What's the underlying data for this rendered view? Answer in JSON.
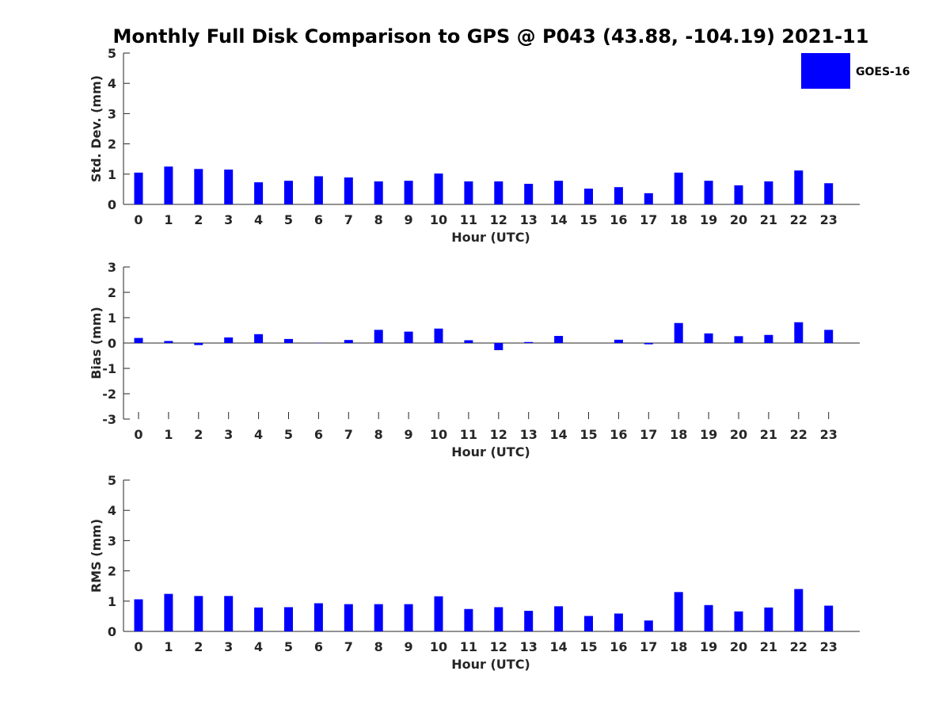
{
  "title": "Monthly Full Disk Comparison to GPS @ P043 (43.88, -104.19) 2021-11",
  "colors": {
    "bar": "#0000ff",
    "axis": "#262626",
    "background": "#ffffff"
  },
  "legend": {
    "label": "GOES-16",
    "color": "#0000ff",
    "placement": "top-right"
  },
  "chart_data": [
    {
      "type": "bar",
      "title": "",
      "xlabel": "Hour (UTC)",
      "ylabel": "Std. Dev. (mm)",
      "ylim": [
        0,
        5
      ],
      "yticks": [
        0,
        1,
        2,
        3,
        4,
        5
      ],
      "categories": [
        "0",
        "1",
        "2",
        "3",
        "4",
        "5",
        "6",
        "7",
        "8",
        "9",
        "10",
        "11",
        "12",
        "13",
        "14",
        "15",
        "16",
        "17",
        "18",
        "19",
        "20",
        "21",
        "22",
        "23"
      ],
      "series": [
        {
          "name": "GOES-16",
          "values": [
            1.05,
            1.25,
            1.17,
            1.15,
            0.73,
            0.78,
            0.93,
            0.89,
            0.76,
            0.78,
            1.02,
            0.76,
            0.76,
            0.68,
            0.78,
            0.52,
            0.57,
            0.37,
            1.05,
            0.78,
            0.63,
            0.76,
            1.12,
            0.7
          ]
        }
      ],
      "grid": false
    },
    {
      "type": "bar",
      "title": "",
      "xlabel": "Hour (UTC)",
      "ylabel": "Bias (mm)",
      "ylim": [
        -3,
        3
      ],
      "yticks": [
        -3,
        -2,
        -1,
        0,
        1,
        2,
        3
      ],
      "categories": [
        "0",
        "1",
        "2",
        "3",
        "4",
        "5",
        "6",
        "7",
        "8",
        "9",
        "10",
        "11",
        "12",
        "13",
        "14",
        "15",
        "16",
        "17",
        "18",
        "19",
        "20",
        "21",
        "22",
        "23"
      ],
      "series": [
        {
          "name": "GOES-16",
          "values": [
            0.2,
            0.08,
            -0.08,
            0.22,
            0.35,
            0.16,
            0.01,
            0.12,
            0.52,
            0.45,
            0.57,
            0.11,
            -0.28,
            0.04,
            0.28,
            0.0,
            0.13,
            -0.05,
            0.79,
            0.38,
            0.27,
            0.32,
            0.82,
            0.52
          ]
        }
      ],
      "grid": false
    },
    {
      "type": "bar",
      "title": "",
      "xlabel": "Hour (UTC)",
      "ylabel": "RMS (mm)",
      "ylim": [
        0,
        5
      ],
      "yticks": [
        0,
        1,
        2,
        3,
        4,
        5
      ],
      "categories": [
        "0",
        "1",
        "2",
        "3",
        "4",
        "5",
        "6",
        "7",
        "8",
        "9",
        "10",
        "11",
        "12",
        "13",
        "14",
        "15",
        "16",
        "17",
        "18",
        "19",
        "20",
        "21",
        "22",
        "23"
      ],
      "series": [
        {
          "name": "GOES-16",
          "values": [
            1.06,
            1.24,
            1.17,
            1.17,
            0.79,
            0.8,
            0.93,
            0.9,
            0.9,
            0.9,
            1.16,
            0.74,
            0.8,
            0.68,
            0.83,
            0.51,
            0.59,
            0.36,
            1.3,
            0.87,
            0.66,
            0.79,
            1.4,
            0.85
          ]
        }
      ],
      "grid": false
    }
  ]
}
